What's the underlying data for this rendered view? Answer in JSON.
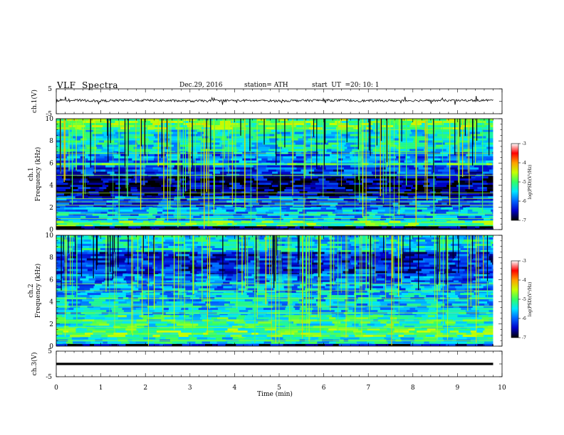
{
  "header": {
    "title": "VLF  Spectra",
    "date": "Dec.29, 2016",
    "station": "station= ATH",
    "start_label": "start  UT  =",
    "start_value": "20: 10: 1"
  },
  "colors": {
    "background": "#ffffff",
    "axis": "#000000",
    "waveform": "#000000"
  },
  "chart_data": [
    {
      "type": "line",
      "panel": "ch1-waveform",
      "ylabel": "ch.1(V)",
      "ylim": [
        -5,
        5
      ],
      "yticks": [
        "5",
        "-5"
      ],
      "xlim": [
        0,
        10
      ],
      "series": [
        {
          "values_description_free": true,
          "mean": 0.4,
          "amplitude": 0.6,
          "x": [
            0,
            1,
            2,
            3,
            4,
            5,
            6,
            7,
            8,
            9,
            9.8
          ],
          "y": [
            0.5,
            0.2,
            0.4,
            0.1,
            0.3,
            0.2,
            0.4,
            0.2,
            0.3,
            0.3,
            0.4
          ]
        }
      ]
    },
    {
      "type": "heatmap",
      "panel": "ch1-spectrogram",
      "ylabel": "ch.1",
      "ylabel2": "Frequency  (kHz)",
      "ylim": [
        0,
        10
      ],
      "yticks": [
        "0",
        "2",
        "4",
        "6",
        "8",
        "10"
      ],
      "xlim": [
        0,
        9.8
      ],
      "colorbar": {
        "label": "log(PSD)(V²/Hz)",
        "range": [
          -7,
          -3
        ],
        "ticks": [
          "-3",
          "-4",
          "-5",
          "-6",
          "-7"
        ],
        "stops": [
          "#000000",
          "#0000c8",
          "#0064ff",
          "#00e6ff",
          "#32ff64",
          "#c8ff00",
          "#ffa000",
          "#ff0000",
          "#ffffff"
        ]
      },
      "bands": [
        {
          "f": [
            9.0,
            10.0
          ],
          "level": -4.9
        },
        {
          "f": [
            7.0,
            9.0
          ],
          "level": -5.4
        },
        {
          "f": [
            6.0,
            7.0
          ],
          "level": -5.9
        },
        {
          "f": [
            5.8,
            6.0
          ],
          "level": -5.1
        },
        {
          "f": [
            4.8,
            5.8
          ],
          "level": -6.2
        },
        {
          "f": [
            3.0,
            4.8
          ],
          "level": -6.7
        },
        {
          "f": [
            2.0,
            3.0
          ],
          "level": -6.1
        },
        {
          "f": [
            0.8,
            2.0
          ],
          "level": -5.7
        },
        {
          "f": [
            0.3,
            0.8
          ],
          "level": -5.0
        },
        {
          "f": [
            0.0,
            0.3
          ],
          "level": -6.9
        }
      ],
      "lines_khz": [
        0.6,
        1.0,
        1.4,
        2.2,
        2.5,
        2.8,
        3.3,
        4.9,
        5.9,
        6.9
      ]
    },
    {
      "type": "heatmap",
      "panel": "ch2-spectrogram",
      "ylabel": "ch.2",
      "ylabel2": "Frequency  (kHz)",
      "ylim": [
        0,
        10
      ],
      "yticks": [
        "0",
        "2",
        "4",
        "6",
        "8",
        "10"
      ],
      "xlim": [
        0,
        9.8
      ],
      "colorbar": {
        "label": "log(PSD)(V²/Hz)",
        "range": [
          -7,
          -3
        ],
        "ticks": [
          "-3",
          "-4",
          "-5",
          "-6",
          "-7"
        ],
        "stops": [
          "#000000",
          "#0000c8",
          "#0064ff",
          "#00e6ff",
          "#32ff64",
          "#c8ff00",
          "#ffa000",
          "#ff0000",
          "#ffffff"
        ]
      },
      "bands": [
        {
          "f": [
            8.5,
            10.0
          ],
          "level": -5.5
        },
        {
          "f": [
            6.5,
            8.5
          ],
          "level": -6.3
        },
        {
          "f": [
            5.8,
            6.5
          ],
          "level": -6.0
        },
        {
          "f": [
            4.8,
            5.8
          ],
          "level": -5.8
        },
        {
          "f": [
            2.8,
            4.8
          ],
          "level": -5.6
        },
        {
          "f": [
            1.6,
            2.8
          ],
          "level": -5.2
        },
        {
          "f": [
            0.8,
            1.6
          ],
          "level": -5.0
        },
        {
          "f": [
            0.2,
            0.8
          ],
          "level": -5.4
        },
        {
          "f": [
            0.0,
            0.2
          ],
          "level": -6.6
        }
      ],
      "lines_khz": [
        0.5,
        1.1,
        1.7,
        2.3,
        3.0,
        3.6,
        4.3,
        5.0,
        5.6
      ]
    },
    {
      "type": "line",
      "panel": "ch3-waveform",
      "ylabel": "ch.3(V)",
      "ylim": [
        -5,
        5
      ],
      "yticks": [
        "5",
        "-5"
      ],
      "xlim": [
        0,
        10
      ],
      "series": [
        {
          "x": [
            0,
            9.8
          ],
          "y": [
            0,
            0
          ]
        }
      ]
    }
  ],
  "time_axis": {
    "xlabel": "Time  (min)",
    "xlim": [
      0,
      10
    ],
    "ticks": [
      "0",
      "1",
      "2",
      "3",
      "4",
      "5",
      "6",
      "7",
      "8",
      "9",
      "10"
    ]
  }
}
